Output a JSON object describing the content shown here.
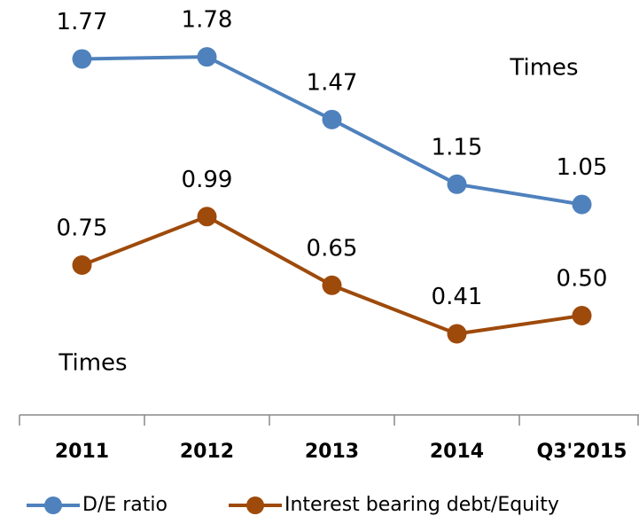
{
  "chart_data": {
    "type": "line",
    "categories": [
      "2011",
      "2012",
      "2013",
      "2014",
      "Q3'2015"
    ],
    "series": [
      {
        "name": "D/E ratio",
        "color": "#4f81bd",
        "values": [
          1.77,
          1.78,
          1.47,
          1.15,
          1.05
        ],
        "value_labels": [
          "1.77",
          "1.78",
          "1.47",
          "1.15",
          "1.05"
        ]
      },
      {
        "name": "Interest bearing debt/Equity",
        "color": "#9e4a0b",
        "values": [
          0.75,
          0.99,
          0.65,
          0.41,
          0.5
        ],
        "value_labels": [
          "0.75",
          "0.99",
          "0.65",
          "0.41",
          "0.50"
        ]
      }
    ],
    "annotations": [
      "Times",
      "Times"
    ],
    "ylim": [
      0,
      2
    ]
  }
}
